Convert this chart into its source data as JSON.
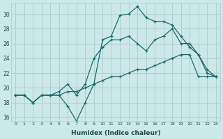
{
  "xlabel": "Humidex (Indice chaleur)",
  "bg_color": "#cce8e8",
  "grid_color": "#aacccc",
  "line_color": "#1a6b6b",
  "xlim": [
    -0.5,
    23.5
  ],
  "ylim": [
    15.5,
    31.5
  ],
  "xticks": [
    0,
    1,
    2,
    3,
    4,
    5,
    6,
    7,
    8,
    9,
    10,
    11,
    12,
    13,
    14,
    15,
    16,
    17,
    18,
    19,
    20,
    21,
    22,
    23
  ],
  "yticks": [
    16,
    18,
    20,
    22,
    24,
    26,
    28,
    30
  ],
  "line1_x": [
    0,
    1,
    2,
    3,
    4,
    5,
    6,
    7,
    8,
    9,
    10,
    11,
    12,
    13,
    14,
    15,
    16,
    17,
    18,
    19,
    20,
    21,
    22,
    23
  ],
  "line1_y": [
    19.0,
    19.0,
    18.0,
    19.0,
    19.0,
    19.0,
    17.5,
    15.5,
    18.0,
    20.5,
    26.5,
    27.0,
    29.8,
    30.0,
    31.0,
    29.5,
    29.0,
    29.0,
    28.5,
    27.0,
    25.5,
    24.5,
    22.5,
    21.5
  ],
  "line2_x": [
    0,
    1,
    2,
    3,
    4,
    5,
    6,
    7,
    8,
    9,
    10,
    11,
    12,
    13,
    14,
    15,
    16,
    17,
    18,
    19,
    20,
    21,
    22,
    23
  ],
  "line2_y": [
    19.0,
    19.0,
    18.0,
    19.0,
    19.0,
    19.5,
    20.5,
    19.0,
    20.5,
    24.0,
    25.5,
    26.5,
    26.5,
    27.0,
    26.0,
    25.0,
    26.5,
    27.0,
    28.0,
    26.0,
    26.0,
    24.5,
    22.0,
    21.5
  ],
  "line3_x": [
    0,
    1,
    2,
    3,
    4,
    5,
    6,
    7,
    8,
    9,
    10,
    11,
    12,
    13,
    14,
    15,
    16,
    17,
    18,
    19,
    20,
    21,
    22,
    23
  ],
  "line3_y": [
    19.0,
    19.0,
    18.0,
    19.0,
    19.0,
    19.0,
    19.5,
    19.5,
    20.0,
    20.5,
    21.0,
    21.5,
    21.5,
    22.0,
    22.5,
    22.5,
    23.0,
    23.5,
    24.0,
    24.5,
    24.5,
    21.5,
    21.5,
    21.5
  ]
}
